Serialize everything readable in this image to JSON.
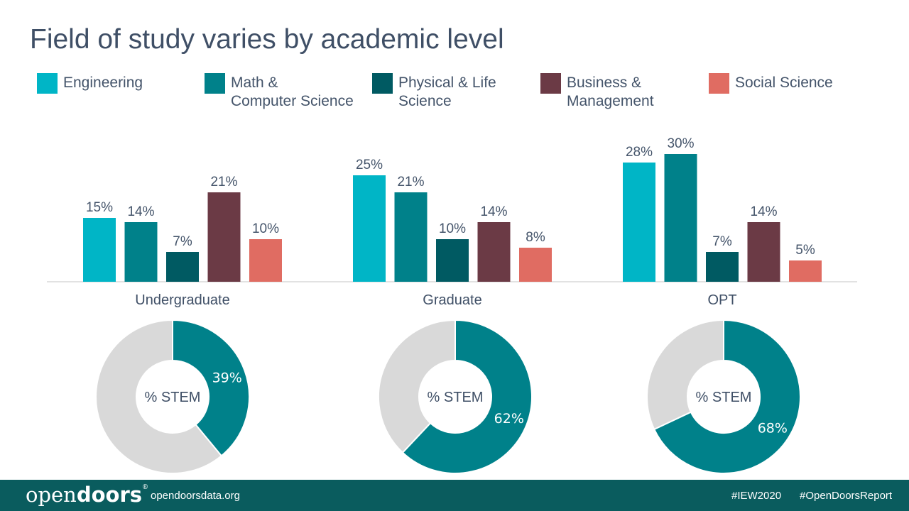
{
  "title": "Field of study varies by academic level",
  "legend": [
    {
      "label": "Engineering",
      "color": "#00b5c6"
    },
    {
      "label": "Math &\nComputer Science",
      "color": "#00818a"
    },
    {
      "label": "Physical & Life\nScience",
      "color": "#005a62"
    },
    {
      "label": "Business &\nManagement",
      "color": "#6b3a45"
    },
    {
      "label": "Social Science",
      "color": "#e06c62"
    }
  ],
  "chart_data": [
    {
      "type": "bar",
      "categories": [
        "Undergraduate",
        "Graduate",
        "OPT"
      ],
      "series": [
        {
          "name": "Engineering",
          "values": [
            15,
            25,
            28
          ]
        },
        {
          "name": "Math & Computer Science",
          "values": [
            14,
            21,
            30
          ]
        },
        {
          "name": "Physical & Life Science",
          "values": [
            7,
            10,
            7
          ]
        },
        {
          "name": "Business & Management",
          "values": [
            21,
            14,
            14
          ]
        },
        {
          "name": "Social Science",
          "values": [
            10,
            8,
            5
          ]
        }
      ],
      "value_suffix": "%",
      "ylim": [
        0,
        30
      ],
      "grid": false,
      "legend_position": "top"
    },
    {
      "type": "pie",
      "charts": [
        {
          "label": "Undergraduate",
          "center_text": "% STEM",
          "stem": 39,
          "value_label": "39%"
        },
        {
          "label": "Graduate",
          "center_text": "% STEM",
          "stem": 62,
          "value_label": "62%"
        },
        {
          "label": "OPT",
          "center_text": "% STEM",
          "stem": 68,
          "value_label": "68%"
        }
      ],
      "colors": {
        "stem": "#00818a",
        "other": "#d9d9d9"
      }
    }
  ],
  "footer": {
    "logo_open": "open",
    "logo_doors": "doors",
    "logo_reg": "®",
    "site": "opendoorsdata.org",
    "tag1": "#IEW2020",
    "tag2": "#OpenDoorsReport"
  }
}
